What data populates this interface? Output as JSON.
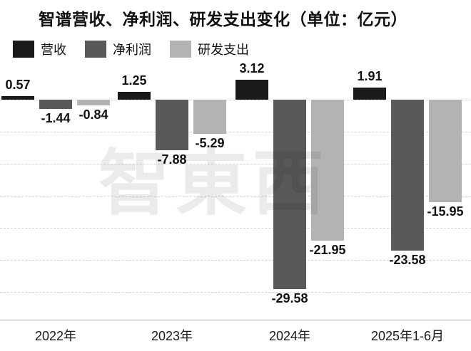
{
  "title": "智谱营收、净利润、研发支出变化（单位：亿元）",
  "watermark": "智東西",
  "legend": [
    {
      "id": "revenue",
      "label": "营收",
      "color": "#1a1a1a"
    },
    {
      "id": "net-profit",
      "label": "净利润",
      "color": "#595959"
    },
    {
      "id": "rd-expense",
      "label": "研发支出",
      "color": "#b3b3b3"
    }
  ],
  "chart_data": {
    "type": "bar",
    "title": "智谱营收、净利润、研发支出变化（单位：亿元）",
    "categories": [
      "2022年",
      "2023年",
      "2024年",
      "2025年1-6月"
    ],
    "series": [
      {
        "id": "revenue",
        "name": "营收",
        "color": "#1a1a1a",
        "values": [
          0.57,
          1.25,
          3.12,
          1.91
        ],
        "labels": [
          "0.57",
          "1.25",
          "3.12",
          "1.91"
        ]
      },
      {
        "id": "net-profit",
        "name": "净利润",
        "color": "#595959",
        "values": [
          -1.44,
          -7.88,
          -29.58,
          -23.58
        ],
        "labels": [
          "-1.44",
          "-7.88",
          "-29.58",
          "-23.58"
        ]
      },
      {
        "id": "rd-expense",
        "name": "研发支出",
        "color": "#b3b3b3",
        "values": [
          -0.84,
          -5.29,
          -21.95,
          -15.95
        ],
        "labels": [
          "-0.84",
          "-5.29",
          "-21.95",
          "-15.95"
        ]
      }
    ],
    "ylim": [
      -30,
      5
    ],
    "grid": "dashed horizontal, every 5 units below zero",
    "legend_position": "top-left",
    "unit": "亿元",
    "xlabel": "",
    "ylabel": ""
  }
}
